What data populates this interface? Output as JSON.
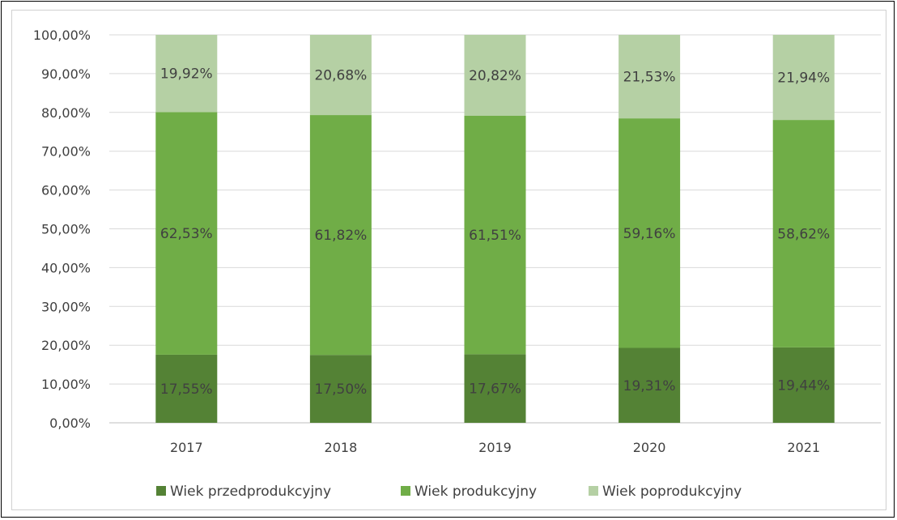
{
  "chart_data": {
    "type": "bar",
    "stacked": true,
    "categories": [
      "2017",
      "2018",
      "2019",
      "2020",
      "2021"
    ],
    "series": [
      {
        "name": "Wiek przedprodukcyjny",
        "values": [
          17.55,
          17.5,
          17.67,
          19.31,
          19.44
        ],
        "labels": [
          "17,55%",
          "17,50%",
          "17,67%",
          "19,31%",
          "19,44%"
        ],
        "color": "#548235"
      },
      {
        "name": "Wiek produkcyjny",
        "values": [
          62.53,
          61.82,
          61.51,
          59.16,
          58.62
        ],
        "labels": [
          "62,53%",
          "61,82%",
          "61,51%",
          "59,16%",
          "58,62%"
        ],
        "color": "#70ad47"
      },
      {
        "name": "Wiek poprodukcyjny",
        "values": [
          19.92,
          20.68,
          20.82,
          21.53,
          21.94
        ],
        "labels": [
          "19,92%",
          "20,68%",
          "20,82%",
          "21,53%",
          "21,94%"
        ],
        "color": "#b5d0a4"
      }
    ],
    "y_ticks": [
      "0,00%",
      "10,00%",
      "20,00%",
      "30,00%",
      "40,00%",
      "50,00%",
      "60,00%",
      "70,00%",
      "80,00%",
      "90,00%",
      "100,00%"
    ],
    "ylim": [
      0,
      100
    ],
    "grid": true,
    "legend_position": "bottom",
    "title": "",
    "xlabel": "",
    "ylabel": ""
  }
}
